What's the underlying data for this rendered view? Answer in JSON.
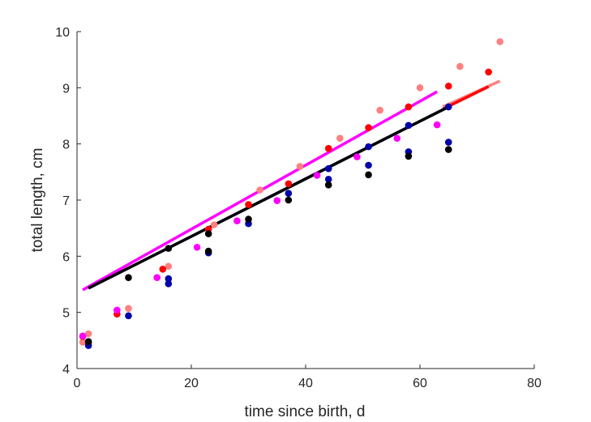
{
  "chart_data": {
    "type": "scatter",
    "xlabel": "time since birth, d",
    "ylabel": "total length, cm",
    "xlim": [
      0,
      80
    ],
    "ylim": [
      4,
      10
    ],
    "xticks": [
      "0",
      "20",
      "40",
      "60",
      "80"
    ],
    "yticks": [
      "4",
      "5",
      "6",
      "7",
      "8",
      "9",
      "10"
    ],
    "grid": false,
    "legend": "none",
    "series": [
      {
        "color": "#ff8080",
        "points": [
          [
            1,
            4.47
          ],
          [
            2,
            4.62
          ],
          [
            9,
            5.07
          ],
          [
            16,
            5.82
          ],
          [
            24,
            6.56
          ],
          [
            32,
            7.18
          ],
          [
            39,
            7.6
          ],
          [
            46,
            8.1
          ],
          [
            53,
            8.6
          ],
          [
            60,
            9.0
          ],
          [
            67,
            9.38
          ],
          [
            74,
            9.82
          ]
        ],
        "fit": [
          [
            64,
            8.66
          ],
          [
            74,
            9.12
          ]
        ]
      },
      {
        "color": "#ff0000",
        "points": [
          [
            1,
            4.57
          ],
          [
            2,
            4.46
          ],
          [
            7,
            4.97
          ],
          [
            15,
            5.77
          ],
          [
            23,
            6.48
          ],
          [
            30,
            6.92
          ],
          [
            37,
            7.29
          ],
          [
            44,
            7.92
          ],
          [
            51,
            8.29
          ],
          [
            58,
            8.66
          ],
          [
            65,
            9.03
          ],
          [
            72,
            9.28
          ]
        ],
        "fit": [
          [
            64,
            8.62
          ],
          [
            72,
            9.02
          ]
        ]
      },
      {
        "color": "#ff00ff",
        "points": [
          [
            1,
            4.58
          ],
          [
            7,
            5.04
          ],
          [
            14,
            5.62
          ],
          [
            21,
            6.16
          ],
          [
            28,
            6.63
          ],
          [
            35,
            6.99
          ],
          [
            42,
            7.44
          ],
          [
            49,
            7.77
          ],
          [
            56,
            8.1
          ],
          [
            63,
            8.34
          ]
        ],
        "fit": [
          [
            1,
            5.4
          ],
          [
            63,
            8.93
          ]
        ]
      },
      {
        "color": "#0000aa",
        "points": [
          [
            2,
            4.41
          ],
          [
            9,
            4.94
          ],
          [
            16,
            5.51
          ],
          [
            23,
            6.06
          ],
          [
            30,
            6.58
          ],
          [
            37,
            7.12
          ],
          [
            44,
            7.56
          ],
          [
            51,
            7.95
          ],
          [
            58,
            8.33
          ],
          [
            65,
            8.66
          ],
          [
            16,
            5.6
          ],
          [
            44,
            7.37
          ],
          [
            51,
            7.62
          ],
          [
            58,
            7.86
          ],
          [
            65,
            8.03
          ]
        ],
        "fit": [
          [
            2,
            5.43
          ],
          [
            65,
            8.66
          ]
        ]
      },
      {
        "color": "#000000",
        "points": [
          [
            2,
            4.48
          ],
          [
            9,
            5.62
          ],
          [
            16,
            6.14
          ],
          [
            23,
            6.4
          ],
          [
            23,
            6.09
          ],
          [
            30,
            6.66
          ],
          [
            37,
            7.0
          ],
          [
            44,
            7.27
          ],
          [
            51,
            7.45
          ],
          [
            58,
            7.78
          ],
          [
            65,
            7.9
          ]
        ],
        "fit": [
          [
            2,
            5.43
          ],
          [
            65,
            8.66
          ]
        ]
      }
    ]
  }
}
